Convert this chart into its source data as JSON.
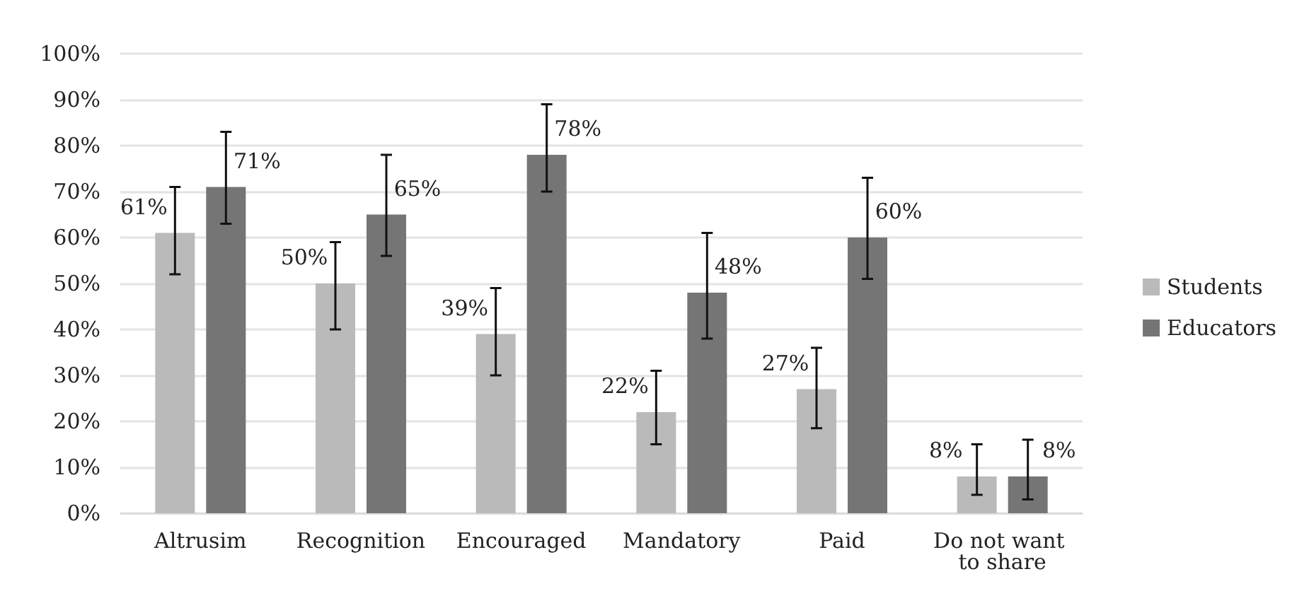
{
  "chart_data": {
    "type": "bar",
    "categories": [
      "Altrusim",
      "Recognition",
      "Encouraged",
      "Mandatory",
      "Paid",
      "Do not want to share"
    ],
    "series": [
      {
        "name": "Students",
        "color": "#bababa",
        "values": [
          61,
          50,
          39,
          22,
          27,
          8
        ],
        "value_labels": [
          "61%",
          "50%",
          "39%",
          "22%",
          "27%",
          "8%"
        ],
        "errors": [
          [
            52,
            71
          ],
          [
            40,
            59
          ],
          [
            30,
            49
          ],
          [
            15,
            31
          ],
          [
            18.5,
            36
          ],
          [
            4,
            15
          ]
        ]
      },
      {
        "name": "Educators",
        "color": "#757575",
        "values": [
          71,
          65,
          78,
          48,
          60,
          8
        ],
        "value_labels": [
          "71%",
          "65%",
          "78%",
          "48%",
          "60%",
          "8%"
        ],
        "errors": [
          [
            63,
            83
          ],
          [
            56,
            78
          ],
          [
            70,
            89
          ],
          [
            38,
            61
          ],
          [
            51,
            73
          ],
          [
            3,
            16
          ]
        ]
      }
    ],
    "ylim": [
      0,
      100
    ],
    "yticks": [
      {
        "value": 0,
        "label": "0%"
      },
      {
        "value": 10,
        "label": "10%"
      },
      {
        "value": 20,
        "label": "20%"
      },
      {
        "value": 30,
        "label": "30%"
      },
      {
        "value": 40,
        "label": "40%"
      },
      {
        "value": 50,
        "label": "50%"
      },
      {
        "value": 60,
        "label": "60%"
      },
      {
        "value": 70,
        "label": "70%"
      },
      {
        "value": 80,
        "label": "80%"
      },
      {
        "value": 90,
        "label": "90%"
      },
      {
        "value": 100,
        "label": "100%"
      }
    ],
    "grid": "y",
    "legend": "right"
  }
}
